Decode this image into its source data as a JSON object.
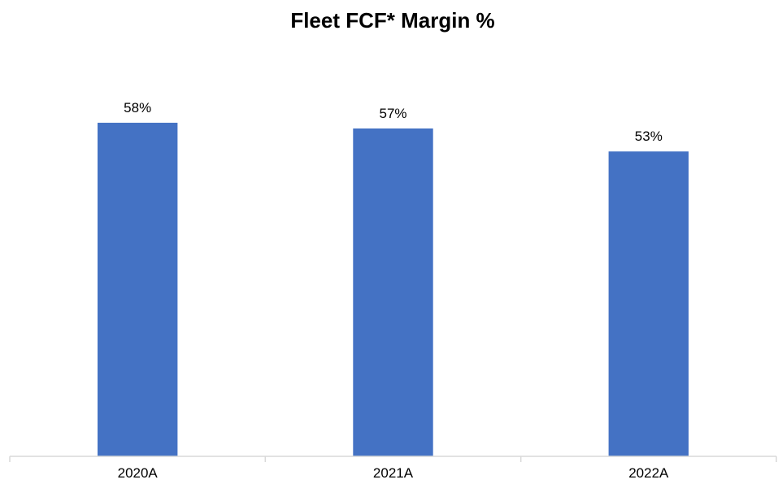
{
  "chart_data": {
    "type": "bar",
    "title": "Fleet FCF* Margin %",
    "categories": [
      "2020A",
      "2021A",
      "2022A"
    ],
    "values": [
      58,
      57,
      53
    ],
    "data_labels": [
      "58%",
      "57%",
      "53%"
    ],
    "xlabel": "",
    "ylabel": "",
    "ylim": [
      0,
      70
    ],
    "grid": false,
    "legend": "none",
    "colors": {
      "bar": "#4472c4",
      "axis": "#d9d9d9",
      "text": "#000000"
    }
  }
}
